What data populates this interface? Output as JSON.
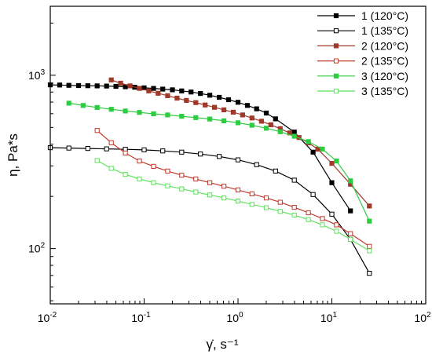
{
  "chart_data": {
    "type": "line",
    "title": "",
    "xlabel": "γ̇, s⁻¹",
    "ylabel": "η, Pa*s",
    "xscale": "log",
    "yscale": "log",
    "xlim": [
      0.01,
      100
    ],
    "ylim": [
      48,
      2500
    ],
    "x_ticks": [
      {
        "value": 0.01,
        "base": "10",
        "exp": "-2"
      },
      {
        "value": 0.1,
        "base": "10",
        "exp": "-1"
      },
      {
        "value": 1,
        "base": "10",
        "exp": "0"
      },
      {
        "value": 10,
        "base": "10",
        "exp": "1"
      },
      {
        "value": 100,
        "base": "10",
        "exp": "2"
      }
    ],
    "y_ticks": [
      {
        "value": 100,
        "base": "10",
        "exp": "2"
      },
      {
        "value": 1000,
        "base": "10",
        "exp": "3"
      }
    ],
    "grid": false,
    "legend_position": "top-right",
    "series": [
      {
        "name": "1 (120°C)",
        "color": "#000000",
        "marker": "filled",
        "x": [
          0.01,
          0.0126,
          0.0158,
          0.02,
          0.0251,
          0.0316,
          0.0398,
          0.0501,
          0.0631,
          0.0794,
          0.1,
          0.126,
          0.158,
          0.2,
          0.251,
          0.316,
          0.398,
          0.501,
          0.631,
          0.794,
          1.0,
          1.26,
          1.58,
          2.0,
          2.51,
          3.98,
          6.31,
          10.0,
          15.8
        ],
        "y": [
          880,
          878,
          875,
          872,
          870,
          868,
          866,
          863,
          858,
          853,
          846,
          840,
          832,
          824,
          812,
          800,
          785,
          767,
          746,
          723,
          698,
          670,
          640,
          605,
          560,
          470,
          360,
          240,
          165
        ]
      },
      {
        "name": "1 (135°C)",
        "color": "#000000",
        "marker": "open",
        "x": [
          0.01,
          0.0158,
          0.0251,
          0.0398,
          0.0631,
          0.1,
          0.158,
          0.251,
          0.398,
          0.631,
          1.0,
          1.58,
          2.51,
          3.98,
          6.31,
          10.0,
          15.8,
          25.1
        ],
        "y": [
          382,
          380,
          378,
          376,
          374,
          371,
          366,
          360,
          351,
          340,
          325,
          305,
          280,
          248,
          205,
          158,
          113,
          72
        ]
      },
      {
        "name": "2 (120°C)",
        "color": "#a0392a",
        "marker": "filled",
        "x": [
          0.0447,
          0.0562,
          0.0708,
          0.0891,
          0.112,
          0.141,
          0.178,
          0.224,
          0.282,
          0.355,
          0.447,
          0.562,
          0.708,
          0.891,
          1.12,
          1.41,
          1.78,
          2.24,
          2.82,
          3.55,
          4.47,
          5.62,
          7.08,
          10.0,
          15.8,
          25.1
        ],
        "y": [
          940,
          900,
          868,
          840,
          812,
          787,
          762,
          738,
          716,
          695,
          674,
          653,
          632,
          612,
          590,
          567,
          543,
          518,
          492,
          465,
          437,
          407,
          375,
          310,
          235,
          176
        ]
      },
      {
        "name": "2 (135°C)",
        "color": "#c0392b",
        "marker": "open",
        "x": [
          0.0316,
          0.0447,
          0.0631,
          0.0891,
          0.126,
          0.178,
          0.251,
          0.355,
          0.501,
          0.708,
          1.0,
          1.41,
          2.0,
          2.82,
          3.98,
          5.62,
          7.94,
          11.2,
          15.8,
          25.1
        ],
        "y": [
          480,
          408,
          356,
          320,
          298,
          280,
          265,
          252,
          240,
          229,
          218,
          207,
          196,
          185,
          173,
          161,
          149,
          137,
          122,
          103
        ]
      },
      {
        "name": "3 (120°C)",
        "color": "#2ecc40",
        "marker": "filled",
        "x": [
          0.0158,
          0.0224,
          0.0316,
          0.0447,
          0.0631,
          0.0891,
          0.126,
          0.178,
          0.251,
          0.355,
          0.501,
          0.708,
          1.0,
          1.41,
          2.0,
          2.82,
          3.98,
          5.62,
          7.94,
          11.2,
          15.8,
          25.1
        ],
        "y": [
          690,
          670,
          652,
          636,
          622,
          610,
          599,
          590,
          580,
          570,
          559,
          546,
          532,
          515,
          495,
          472,
          445,
          414,
          375,
          320,
          246,
          144
        ]
      },
      {
        "name": "3 (135°C)",
        "color": "#5ee35e",
        "marker": "open",
        "x": [
          0.0316,
          0.0447,
          0.0631,
          0.0891,
          0.126,
          0.178,
          0.251,
          0.355,
          0.501,
          0.708,
          1.0,
          1.41,
          2.0,
          2.82,
          3.98,
          5.62,
          7.94,
          11.2,
          15.8,
          25.1
        ],
        "y": [
          322,
          290,
          268,
          252,
          240,
          230,
          221,
          212,
          204,
          196,
          188,
          180,
          172,
          164,
          156,
          147,
          137,
          126,
          113,
          97
        ]
      }
    ]
  }
}
